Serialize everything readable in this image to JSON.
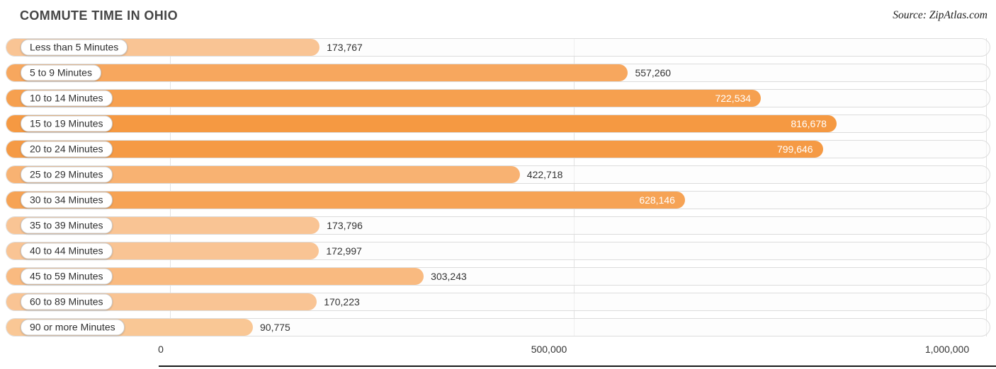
{
  "title": "COMMUTE TIME IN OHIO",
  "source": "Source: ZipAtlas.com",
  "chart_data": {
    "type": "bar",
    "orientation": "horizontal",
    "title": "COMMUTE TIME IN OHIO",
    "categories": [
      "Less than 5 Minutes",
      "5 to 9 Minutes",
      "10 to 14 Minutes",
      "15 to 19 Minutes",
      "20 to 24 Minutes",
      "25 to 29 Minutes",
      "30 to 34 Minutes",
      "35 to 39 Minutes",
      "40 to 44 Minutes",
      "45 to 59 Minutes",
      "60 to 89 Minutes",
      "90 or more Minutes"
    ],
    "values": [
      173767,
      557260,
      722534,
      816678,
      799646,
      422718,
      628146,
      173796,
      172997,
      303243,
      170223,
      90775
    ],
    "value_labels": [
      "173,767",
      "557,260",
      "722,534",
      "816,678",
      "799,646",
      "422,718",
      "628,146",
      "173,796",
      "172,997",
      "303,243",
      "170,223",
      "90,775"
    ],
    "bar_colors": [
      "#f9c494",
      "#f7a75e",
      "#f6a04f",
      "#f59942",
      "#f59a45",
      "#f8b272",
      "#f6a355",
      "#f9c494",
      "#f9c494",
      "#f9ba80",
      "#f9c494",
      "#f9c795"
    ],
    "value_label_inside": [
      false,
      false,
      true,
      true,
      true,
      false,
      true,
      false,
      false,
      false,
      false,
      false
    ],
    "xlabel": "",
    "ylabel": "",
    "xlim": [
      0,
      1000000
    ],
    "x_ticks": [
      "0",
      "500,000",
      "1,000,000"
    ],
    "grid": true,
    "legend": false
  },
  "colors": {
    "track_border": "#dcdcdc",
    "gridline": "#e2e2e2",
    "value_text_outside": "#333333",
    "value_text_inside": "#ffffff",
    "axis_line": "#191919"
  }
}
